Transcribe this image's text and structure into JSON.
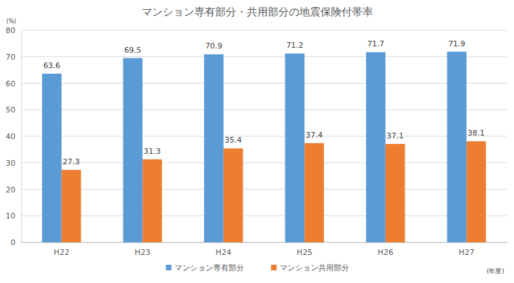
{
  "chart_data": {
    "type": "bar",
    "title": "マンション専有部分・共用部分の地震保険付帯率",
    "y_label": "(%)",
    "x_label": "(年度)",
    "categories": [
      "H22",
      "H23",
      "H24",
      "H25",
      "H26",
      "H27"
    ],
    "series": [
      {
        "name": "マンション専有部分",
        "color": "#5b9bd5",
        "values": [
          63.6,
          69.5,
          70.9,
          71.2,
          71.7,
          71.9
        ]
      },
      {
        "name": "マンション共用部分",
        "color": "#ed7d31",
        "values": [
          27.3,
          31.3,
          35.4,
          37.4,
          37.1,
          38.1
        ]
      }
    ],
    "ylim": [
      0,
      80
    ],
    "yticks": [
      0,
      10,
      20,
      30,
      40,
      50,
      60,
      70,
      80
    ],
    "grid": true,
    "legend": "bottom",
    "data_labels": true
  }
}
